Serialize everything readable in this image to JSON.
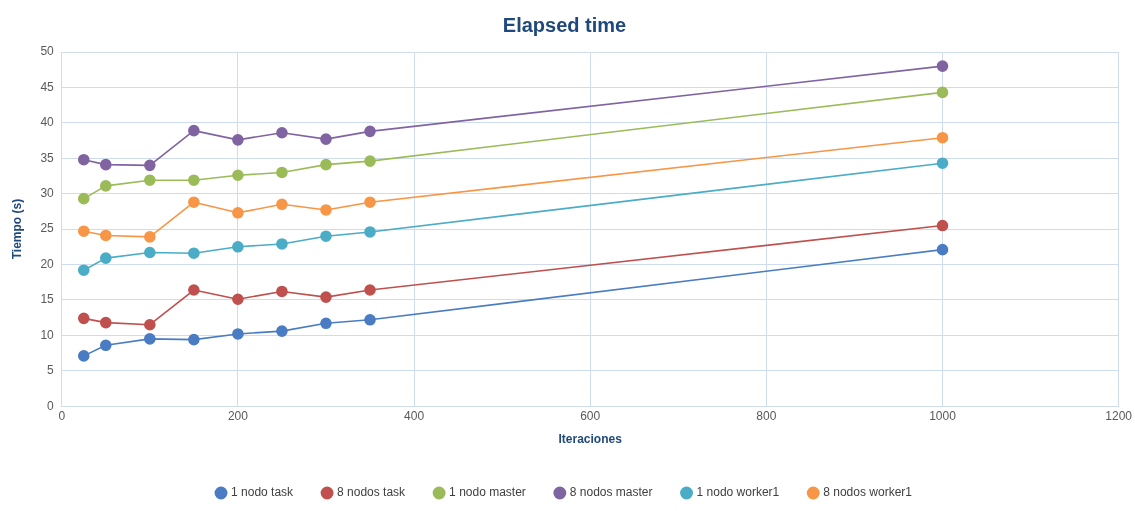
{
  "chart_data": {
    "type": "line",
    "title": "Elapsed time",
    "xlabel": "Iteraciones",
    "ylabel": "Tiempo (s)",
    "x": [
      25,
      50,
      100,
      150,
      200,
      250,
      300,
      350,
      1000
    ],
    "series": [
      {
        "name": "1 nodo task",
        "color": "#4a7cc4",
        "values": [
          7.1,
          8.6,
          9.5,
          9.4,
          10.2,
          10.6,
          11.7,
          12.2,
          22.1
        ]
      },
      {
        "name": "8 nodos task",
        "color": "#c0504d",
        "values": [
          12.4,
          11.8,
          11.5,
          16.4,
          15.1,
          16.2,
          15.4,
          16.4,
          25.5
        ]
      },
      {
        "name": "1 nodo master",
        "color": "#9bbb59",
        "values": [
          29.3,
          31.1,
          31.9,
          31.9,
          32.6,
          33.0,
          34.1,
          34.6,
          44.3
        ]
      },
      {
        "name": "8 nodos master",
        "color": "#8064a2",
        "values": [
          34.8,
          34.1,
          34.0,
          38.9,
          37.6,
          38.6,
          37.7,
          38.8,
          48.0
        ]
      },
      {
        "name": "1 nodo worker1",
        "color": "#4bacc6",
        "values": [
          19.2,
          20.9,
          21.7,
          21.6,
          22.5,
          22.9,
          24.0,
          24.6,
          34.3
        ]
      },
      {
        "name": "8 nodos worker1",
        "color": "#f79646",
        "values": [
          24.7,
          24.1,
          23.9,
          28.8,
          27.3,
          28.5,
          27.7,
          28.8,
          37.9
        ]
      }
    ],
    "xlim": [
      0,
      1200
    ],
    "xticks": [
      0,
      200,
      400,
      600,
      800,
      1000,
      1200
    ],
    "ylim": [
      0,
      50
    ],
    "yticks": [
      0,
      5,
      10,
      15,
      20,
      25,
      30,
      35,
      40,
      45,
      50
    ],
    "grid": true,
    "legend": "bottom",
    "marker": "circle",
    "line_style": "solid"
  }
}
